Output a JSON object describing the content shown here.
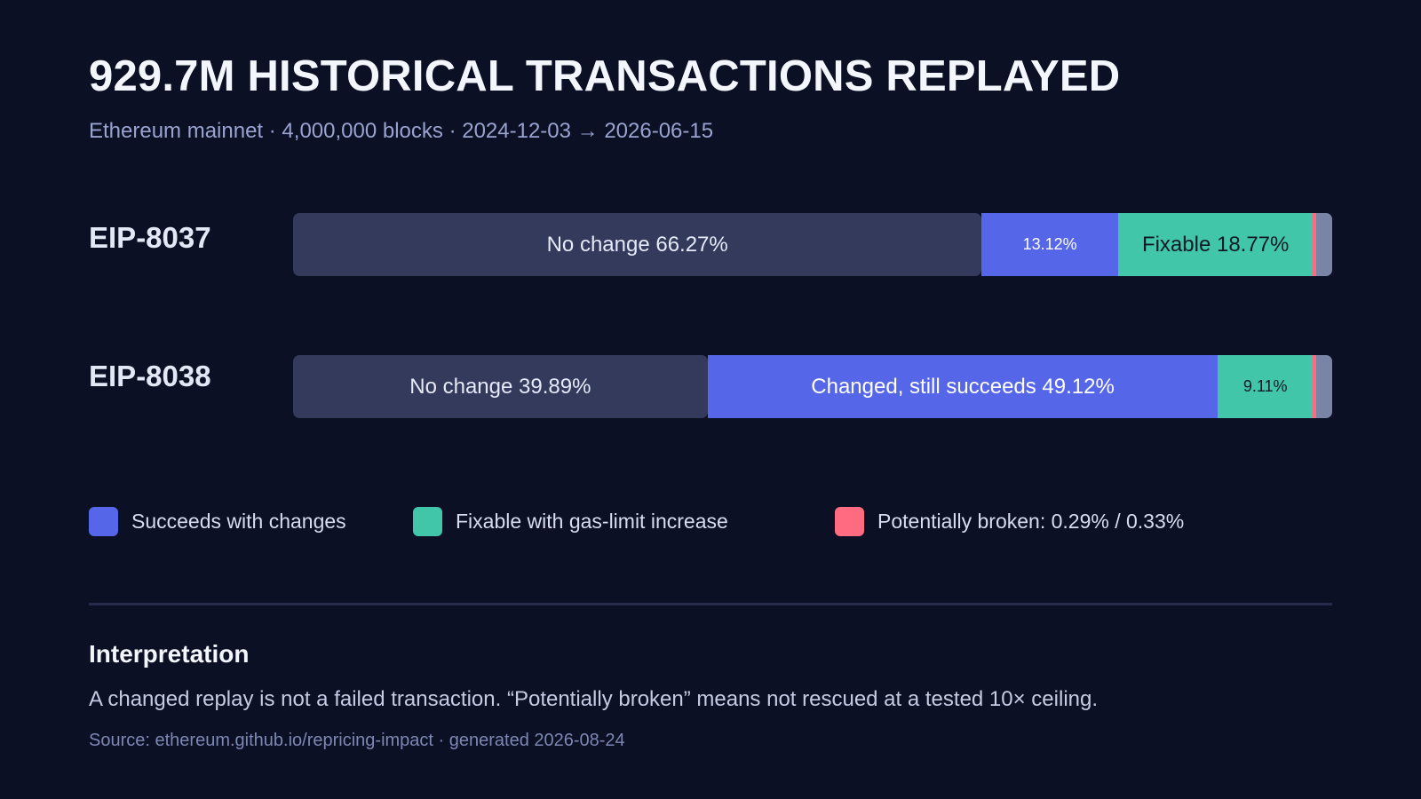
{
  "title": "929.7M HISTORICAL TRANSACTIONS REPLAYED",
  "subtitle": "Ethereum mainnet · 4,000,000 blocks · 2024-12-03 → 2026-06-15",
  "colors": {
    "background": "#0b1024",
    "no_change": "#333a5c",
    "succeeds_with_changes": "#5566e8",
    "fixable": "#42c6aa",
    "potentially_broken": "#ff6b81",
    "remainder": "#7a84a6"
  },
  "chart_data": {
    "type": "bar",
    "orientation": "horizontal",
    "stacked": true,
    "normalized": "percent",
    "categories": [
      "EIP-8037",
      "EIP-8038"
    ],
    "series": [
      {
        "key": "no_change",
        "values": [
          66.27,
          39.89
        ]
      },
      {
        "key": "succeeds_with_changes",
        "name": "Succeeds with changes",
        "values": [
          13.12,
          49.12
        ]
      },
      {
        "key": "fixable",
        "name": "Fixable with gas-limit increase",
        "values": [
          18.77,
          9.11
        ]
      },
      {
        "key": "potentially_broken",
        "name": "Potentially broken",
        "values": [
          0.29,
          0.33
        ]
      },
      {
        "key": "remainder",
        "values": [
          1.55,
          1.55
        ]
      }
    ],
    "segment_labels": [
      [
        "No change 66.27%",
        "13.12%",
        "Fixable 18.77%",
        "",
        ""
      ],
      [
        "No change 39.89%",
        "Changed, still succeeds 49.12%",
        "9.11%",
        "",
        ""
      ]
    ],
    "legend": {
      "placement": "bottom",
      "items": [
        {
          "key": "succeeds_with_changes",
          "label": "Succeeds with changes"
        },
        {
          "key": "fixable",
          "label": "Fixable with gas-limit increase"
        },
        {
          "key": "potentially_broken",
          "label": "Potentially broken: 0.29% / 0.33%"
        }
      ]
    },
    "grid": false
  },
  "interpretation": {
    "heading": "Interpretation",
    "body": "A changed replay is not a failed transaction. “Potentially broken” means not rescued at a tested 10× ceiling."
  },
  "source": "Source: ethereum.github.io/repricing-impact · generated 2026-08-24"
}
